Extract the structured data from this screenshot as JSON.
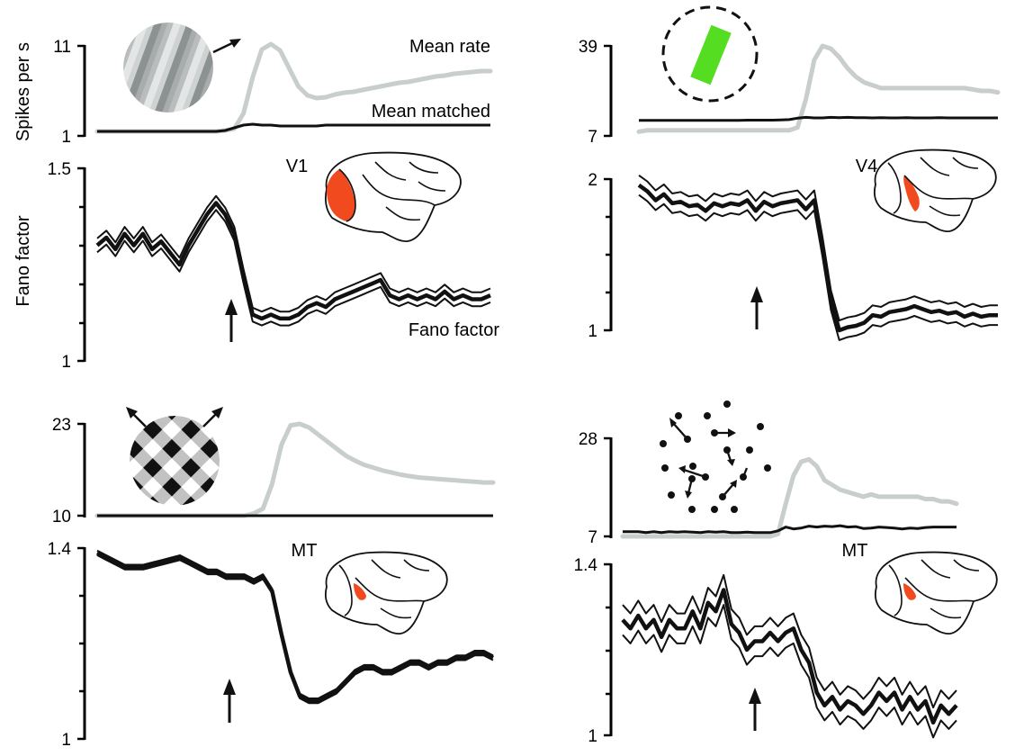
{
  "ylabels": {
    "rate": "Spikes per s",
    "fano": "Fano factor"
  },
  "labels": {
    "mean_rate": "Mean rate",
    "mean_matched": "Mean matched",
    "fano_factor": "Fano factor"
  },
  "colors": {
    "rate": "#c8cdcd",
    "matched": "#111111",
    "area": "#f04a1e",
    "bar": "#55dd22"
  },
  "icons": {
    "stimulus_a": "drifting-grating-icon",
    "stimulus_b": "oriented-bar-icon",
    "stimulus_c": "plaid-icon",
    "stimulus_d": "moving-dots-icon",
    "brain": "monkey-brain-icon",
    "onset": "arrow-up-icon"
  },
  "chart_data": [
    {
      "type": "line",
      "area": "V1",
      "rate": {
        "ylim": [
          1,
          11
        ],
        "ticks": [
          "11",
          "1"
        ],
        "n": 44,
        "series": [
          {
            "name": "Mean rate",
            "values": [
              1.5,
              1.5,
              1.5,
              1.5,
              1.5,
              1.5,
              1.5,
              1.5,
              1.5,
              1.5,
              1.5,
              1.5,
              1.5,
              1.5,
              1.6,
              1.8,
              3.5,
              7.5,
              10.6,
              11.2,
              10.5,
              8.5,
              6.5,
              5.5,
              5.2,
              5.3,
              5.6,
              5.8,
              5.9,
              6.1,
              6.3,
              6.5,
              6.7,
              6.9,
              7.0,
              7.2,
              7.4,
              7.6,
              7.7,
              7.9,
              8.0,
              8.1,
              8.2,
              8.2
            ]
          },
          {
            "name": "Mean matched",
            "values": [
              1.5,
              1.5,
              1.5,
              1.5,
              1.5,
              1.5,
              1.5,
              1.5,
              1.5,
              1.5,
              1.5,
              1.5,
              1.5,
              1.5,
              1.6,
              1.9,
              2.2,
              2.3,
              2.2,
              2.2,
              2.1,
              2.1,
              2.1,
              2.1,
              2.1,
              2.2,
              2.2,
              2.2,
              2.2,
              2.2,
              2.2,
              2.2,
              2.2,
              2.2,
              2.2,
              2.2,
              2.2,
              2.2,
              2.2,
              2.2,
              2.2,
              2.2,
              2.2,
              2.2
            ]
          }
        ]
      },
      "fano": {
        "ylim": [
          1,
          1.5
        ],
        "ticks": [
          "1.5",
          "1"
        ],
        "n": 44,
        "mean": [
          1.3,
          1.32,
          1.29,
          1.33,
          1.3,
          1.33,
          1.29,
          1.31,
          1.28,
          1.25,
          1.3,
          1.34,
          1.38,
          1.41,
          1.38,
          1.33,
          1.22,
          1.12,
          1.11,
          1.12,
          1.11,
          1.11,
          1.12,
          1.14,
          1.15,
          1.14,
          1.16,
          1.17,
          1.18,
          1.19,
          1.2,
          1.21,
          1.17,
          1.16,
          1.17,
          1.16,
          1.17,
          1.16,
          1.18,
          1.16,
          1.17,
          1.16,
          1.16,
          1.17
        ],
        "band": 0.018
      }
    },
    {
      "type": "line",
      "area": "V4",
      "rate": {
        "ylim": [
          7,
          39
        ],
        "ticks": [
          "39",
          "7"
        ],
        "n": 44,
        "series": [
          {
            "name": "Mean rate",
            "values": [
              8.5,
              9,
              9,
              9,
              9,
              9,
              9,
              9,
              9,
              9,
              9,
              9,
              9,
              9,
              9,
              9,
              9,
              9,
              9,
              10,
              20,
              34,
              39,
              38,
              35,
              31,
              28,
              26,
              25,
              24,
              24,
              24,
              24,
              24,
              24,
              24,
              24,
              24,
              24,
              24,
              23.5,
              23,
              23,
              22.5
            ]
          },
          {
            "name": "Mean matched",
            "values": [
              12.5,
              12.5,
              12.5,
              12.5,
              12.5,
              12.5,
              12.5,
              12.5,
              12.5,
              12.5,
              12.5,
              12.5,
              12.5,
              12.6,
              12.6,
              12.6,
              12.6,
              12.7,
              12.8,
              13.3,
              13.6,
              13.4,
              13.4,
              13.6,
              13.5,
              13.6,
              13.5,
              13.5,
              13.4,
              13.5,
              13.4,
              13.4,
              13.5,
              13.4,
              13.4,
              13.4,
              13.5,
              13.4,
              13.4,
              13.4,
              13.4,
              13.4,
              13.4,
              13.4
            ]
          }
        ]
      },
      "fano": {
        "ylim": [
          1,
          2
        ],
        "ticks": [
          "2",
          "1"
        ],
        "n": 44,
        "mean": [
          1.96,
          1.92,
          1.86,
          1.9,
          1.84,
          1.85,
          1.82,
          1.83,
          1.79,
          1.84,
          1.82,
          1.84,
          1.83,
          1.86,
          1.79,
          1.85,
          1.82,
          1.84,
          1.85,
          1.86,
          1.8,
          1.86,
          1.55,
          1.2,
          1.0,
          1.02,
          1.03,
          1.05,
          1.1,
          1.09,
          1.12,
          1.13,
          1.14,
          1.16,
          1.14,
          1.12,
          1.13,
          1.11,
          1.12,
          1.09,
          1.11,
          1.09,
          1.1,
          1.1
        ],
        "band": 0.065
      }
    },
    {
      "type": "line",
      "area": "MT",
      "rate": {
        "ylim": [
          10,
          23
        ],
        "ticks": [
          "23",
          "10"
        ],
        "n": 44,
        "series": [
          {
            "name": "Mean rate",
            "values": [
              10,
              10,
              10,
              10,
              10,
              10,
              10,
              10,
              10,
              10,
              10,
              10,
              10,
              10,
              10,
              10,
              10,
              10.3,
              11,
              14.5,
              20,
              22.8,
              23,
              22.5,
              21.5,
              20.5,
              19.5,
              18.5,
              17.8,
              17.2,
              16.8,
              16.4,
              16.1,
              15.8,
              15.6,
              15.4,
              15.3,
              15.2,
              15.1,
              15,
              14.9,
              14.8,
              14.7,
              14.7
            ]
          },
          {
            "name": "Mean matched",
            "values": [
              10,
              10,
              10,
              10,
              10,
              10,
              10,
              10,
              10,
              10,
              10,
              10,
              10,
              10,
              10,
              10,
              10,
              10,
              10,
              10,
              10,
              10,
              10,
              10,
              10,
              10,
              10,
              10,
              10,
              10,
              10,
              10,
              10,
              10,
              10,
              10,
              10,
              10,
              10,
              10,
              10,
              10,
              10,
              10
            ]
          }
        ]
      },
      "fano": {
        "ylim": [
          1,
          1.4
        ],
        "ticks": [
          "1.4",
          "1"
        ],
        "n": 44,
        "mean": [
          1.39,
          1.38,
          1.37,
          1.36,
          1.36,
          1.36,
          1.365,
          1.37,
          1.375,
          1.38,
          1.37,
          1.36,
          1.35,
          1.35,
          1.34,
          1.34,
          1.34,
          1.33,
          1.34,
          1.31,
          1.22,
          1.14,
          1.09,
          1.08,
          1.08,
          1.09,
          1.1,
          1.12,
          1.14,
          1.15,
          1.15,
          1.14,
          1.14,
          1.15,
          1.16,
          1.16,
          1.15,
          1.16,
          1.16,
          1.17,
          1.17,
          1.18,
          1.18,
          1.17
        ],
        "band": 0.005
      }
    },
    {
      "type": "line",
      "area": "MT",
      "rate": {
        "ylim": [
          7,
          28
        ],
        "ticks": [
          "28",
          "7"
        ],
        "n": 44,
        "series": [
          {
            "name": "Mean rate",
            "values": [
              7,
              7,
              7,
              7,
              7,
              7,
              7,
              7,
              7,
              7,
              7,
              7,
              7,
              7,
              7,
              7,
              7,
              7,
              7,
              7,
              7.5,
              14,
              20,
              23,
              23.5,
              22,
              19,
              18,
              17,
              16.5,
              16,
              15.5,
              16,
              15.5,
              15.5,
              15.5,
              15.5,
              15.5,
              15.5,
              15,
              15,
              14.5,
              14.5,
              14
            ]
          },
          {
            "name": "Mean matched",
            "values": [
              8,
              8,
              8,
              7.8,
              8,
              7.8,
              8,
              7.9,
              8,
              7.9,
              7.8,
              8,
              7.9,
              8,
              7.8,
              7.8,
              7.9,
              7.8,
              7.8,
              7.8,
              8.2,
              9,
              8.6,
              8.8,
              9.2,
              9,
              9.2,
              9.1,
              9.3,
              9,
              9.1,
              8.7,
              8.8,
              9,
              8.9,
              8.8,
              8.6,
              8.8,
              8.7,
              8.9,
              9,
              9,
              9,
              9
            ]
          }
        ]
      },
      "fano": {
        "ylim": [
          1,
          1.4
        ],
        "ticks": [
          "1.4",
          "1"
        ],
        "n": 44,
        "mean": [
          1.27,
          1.25,
          1.28,
          1.25,
          1.27,
          1.23,
          1.27,
          1.25,
          1.25,
          1.29,
          1.25,
          1.31,
          1.29,
          1.34,
          1.26,
          1.24,
          1.2,
          1.22,
          1.22,
          1.24,
          1.22,
          1.24,
          1.25,
          1.2,
          1.17,
          1.1,
          1.07,
          1.09,
          1.06,
          1.08,
          1.07,
          1.05,
          1.07,
          1.1,
          1.08,
          1.1,
          1.06,
          1.09,
          1.06,
          1.08,
          1.03,
          1.07,
          1.05,
          1.07
        ],
        "band": 0.035
      }
    }
  ]
}
